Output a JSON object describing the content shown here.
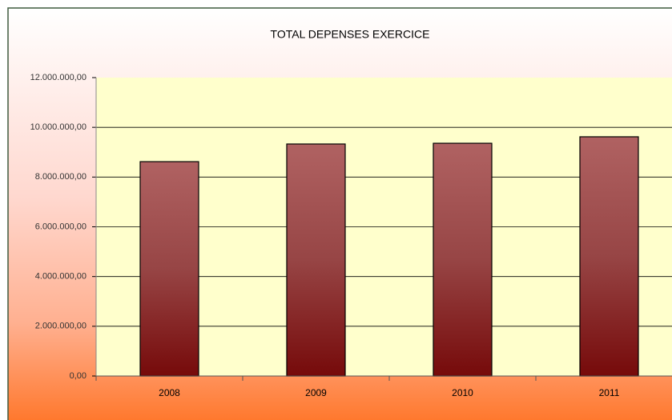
{
  "chart_data": {
    "type": "bar",
    "title": "TOTAL DEPENSES EXERCICE",
    "categories": [
      "2008",
      "2009",
      "2010",
      "2011"
    ],
    "values": [
      8620000,
      9330000,
      9360000,
      9620000
    ],
    "color": "#8a2a2a",
    "ylim": [
      0,
      12000000
    ],
    "yticks": [
      {
        "value": 0,
        "label": "0,00"
      },
      {
        "value": 2000000,
        "label": "2.000.000,00"
      },
      {
        "value": 4000000,
        "label": "4.000.000,00"
      },
      {
        "value": 6000000,
        "label": "6.000.000,00"
      },
      {
        "value": 8000000,
        "label": "8.000.000,00"
      },
      {
        "value": 10000000,
        "label": "10.000.000,00"
      },
      {
        "value": 12000000,
        "label": "12.000.000,00"
      }
    ],
    "grid": true
  }
}
